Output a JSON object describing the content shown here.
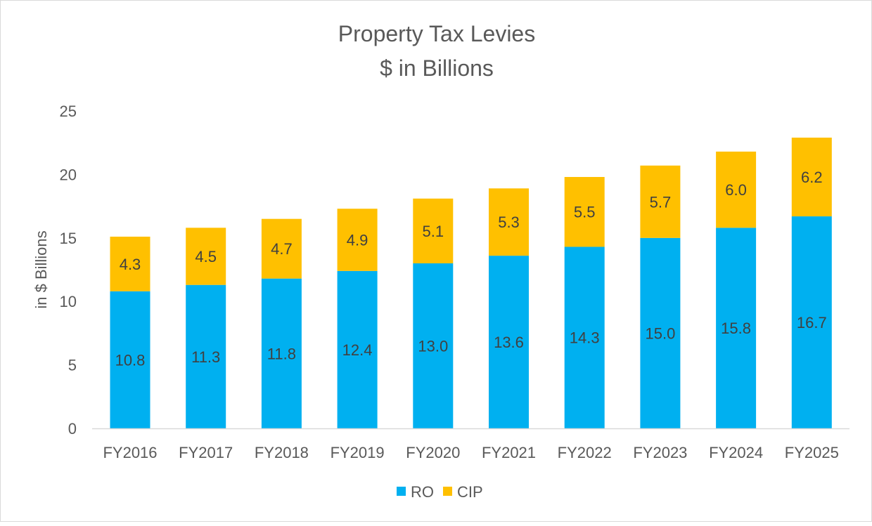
{
  "chart_data": {
    "type": "bar",
    "stacked": true,
    "title": "Property Tax Levies",
    "subtitle": "$ in Billions",
    "xlabel": "",
    "ylabel": "in $ Billions",
    "ylim": [
      0,
      25
    ],
    "yticks": [
      0,
      5,
      10,
      15,
      20,
      25
    ],
    "grid": false,
    "legend_position": "bottom",
    "categories": [
      "FY2016",
      "FY2017",
      "FY2018",
      "FY2019",
      "FY2020",
      "FY2021",
      "FY2022",
      "FY2023",
      "FY2024",
      "FY2025"
    ],
    "series": [
      {
        "name": "RO",
        "color": "#00B0F0",
        "values": [
          10.8,
          11.3,
          11.8,
          12.4,
          13.0,
          13.6,
          14.3,
          15.0,
          15.8,
          16.7
        ]
      },
      {
        "name": "CIP",
        "color": "#FFC000",
        "values": [
          4.3,
          4.5,
          4.7,
          4.9,
          5.1,
          5.3,
          5.5,
          5.7,
          6.0,
          6.2
        ]
      }
    ]
  }
}
